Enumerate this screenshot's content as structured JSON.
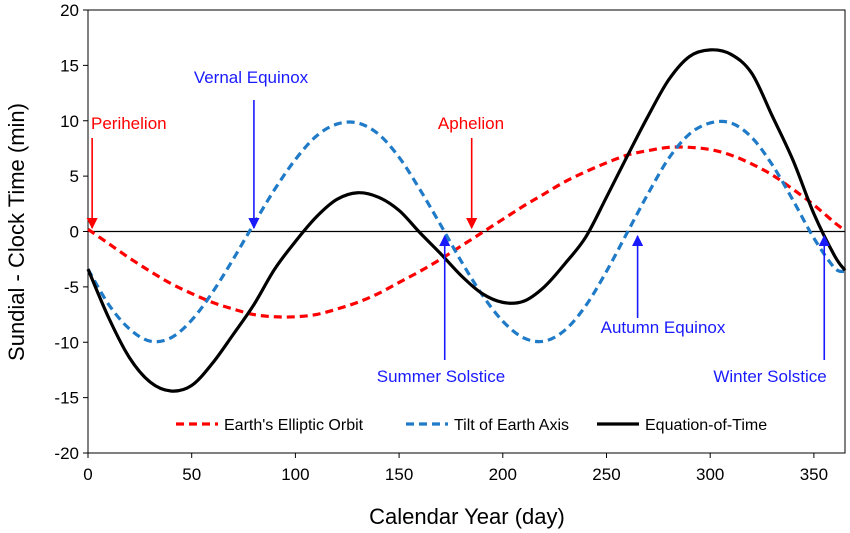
{
  "chart_data": {
    "type": "line",
    "xlabel": "Calendar Year (day)",
    "ylabel": "Sundial - Clock Time  (min)",
    "xlim": [
      0,
      365
    ],
    "ylim": [
      -20,
      20
    ],
    "x_ticks": [
      0,
      50,
      100,
      150,
      200,
      250,
      300,
      350
    ],
    "y_ticks": [
      -20,
      -15,
      -10,
      -5,
      0,
      5,
      10,
      15,
      20
    ],
    "grid": false,
    "legend_position": "bottom",
    "series": [
      {
        "name": "Earth's Elliptic Orbit",
        "color": "#ff0000",
        "style": "dashed",
        "x": [
          0,
          10,
          20,
          30,
          40,
          50,
          60,
          70,
          80,
          90,
          100,
          110,
          120,
          130,
          140,
          150,
          160,
          170,
          180,
          190,
          200,
          210,
          220,
          230,
          240,
          250,
          260,
          270,
          280,
          290,
          300,
          310,
          320,
          330,
          340,
          350,
          360,
          365
        ],
        "values": [
          0.2,
          -1.1,
          -2.4,
          -3.6,
          -4.7,
          -5.6,
          -6.4,
          -7.0,
          -7.5,
          -7.7,
          -7.7,
          -7.5,
          -7.0,
          -6.4,
          -5.6,
          -4.6,
          -3.6,
          -2.5,
          -1.3,
          -0.1,
          1.1,
          2.3,
          3.4,
          4.5,
          5.4,
          6.2,
          6.9,
          7.3,
          7.6,
          7.6,
          7.4,
          6.9,
          6.1,
          5.1,
          3.8,
          2.4,
          0.8,
          0.1
        ]
      },
      {
        "name": "Tilt of Earth Axis",
        "color": "#1f7ac7",
        "style": "dashed",
        "x": [
          0,
          10,
          20,
          30,
          40,
          50,
          60,
          70,
          80,
          90,
          100,
          110,
          120,
          130,
          140,
          150,
          160,
          170,
          180,
          190,
          200,
          210,
          220,
          230,
          240,
          250,
          260,
          270,
          280,
          290,
          300,
          310,
          320,
          330,
          340,
          350,
          360,
          365
        ],
        "values": [
          -3.4,
          -6.6,
          -8.8,
          -9.9,
          -9.6,
          -8.0,
          -5.5,
          -2.5,
          0.7,
          3.8,
          6.5,
          8.6,
          9.7,
          9.8,
          8.8,
          6.7,
          3.8,
          0.6,
          -2.7,
          -5.7,
          -8.1,
          -9.6,
          -9.9,
          -8.9,
          -6.7,
          -3.6,
          -0.1,
          3.4,
          6.6,
          8.8,
          9.8,
          9.8,
          8.5,
          6.0,
          2.8,
          -0.6,
          -3.3,
          -3.6
        ]
      },
      {
        "name": "Equation-of-Time",
        "color": "#000000",
        "style": "solid",
        "x": [
          0,
          10,
          20,
          30,
          40,
          50,
          60,
          70,
          80,
          90,
          100,
          110,
          120,
          130,
          140,
          150,
          160,
          170,
          180,
          190,
          200,
          210,
          220,
          230,
          240,
          250,
          260,
          270,
          280,
          290,
          300,
          310,
          320,
          330,
          340,
          350,
          360,
          365
        ],
        "values": [
          -3.4,
          -7.8,
          -11.4,
          -13.6,
          -14.4,
          -13.9,
          -11.9,
          -9.3,
          -6.6,
          -3.4,
          -0.9,
          1.3,
          2.9,
          3.5,
          3.1,
          1.9,
          -0.1,
          -2.0,
          -4.0,
          -5.6,
          -6.4,
          -6.3,
          -5.0,
          -2.9,
          -0.5,
          3.1,
          6.8,
          10.4,
          13.7,
          15.8,
          16.4,
          16.0,
          14.3,
          10.4,
          6.4,
          1.6,
          -2.2,
          -3.5
        ]
      }
    ],
    "annotations": [
      {
        "text": "Perihelion",
        "x": 2,
        "color": "#ff0000",
        "arrow_from": "above"
      },
      {
        "text": "Vernal Equinox",
        "x": 80,
        "color": "#1a1aff",
        "arrow_from": "above"
      },
      {
        "text": "Aphelion",
        "x": 185,
        "color": "#ff0000",
        "arrow_from": "above"
      },
      {
        "text": "Summer Solstice",
        "x": 172,
        "color": "#1a1aff",
        "arrow_from": "below"
      },
      {
        "text": "Autumn Equinox",
        "x": 265,
        "color": "#1a1aff",
        "arrow_from": "below"
      },
      {
        "text": "Winter Solstice",
        "x": 355,
        "color": "#1a1aff",
        "arrow_from": "below"
      }
    ]
  }
}
